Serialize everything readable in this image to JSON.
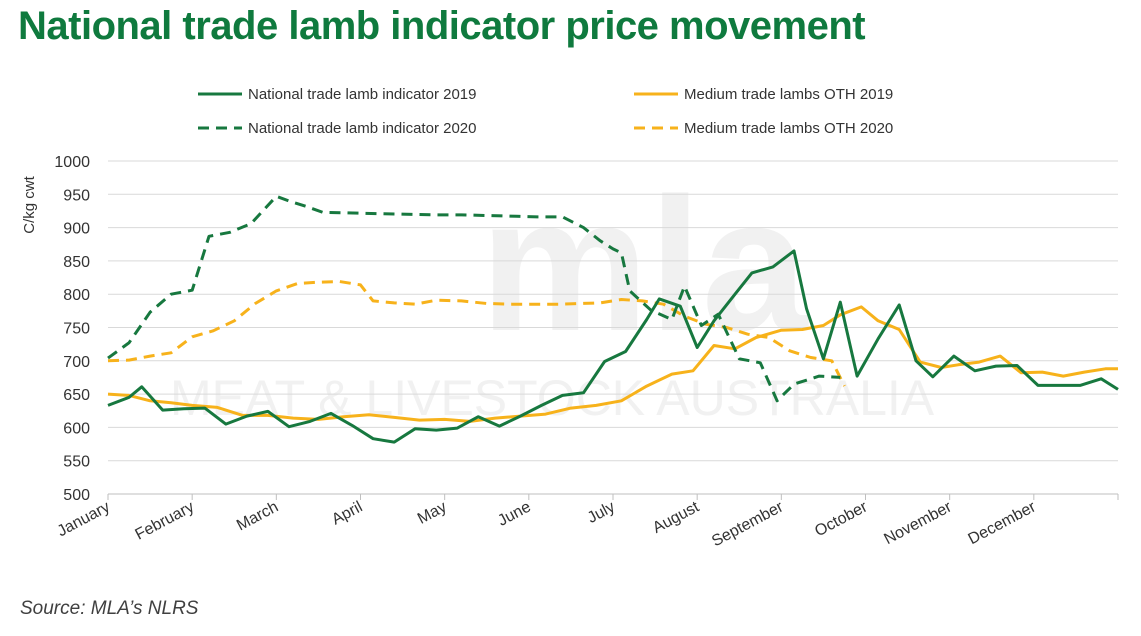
{
  "title": "National trade lamb indicator price movement",
  "source": "Source: MLA’s NLRS",
  "watermark": {
    "logo": "mla",
    "text": "MEAT & LIVESTOCK AUSTRALIA"
  },
  "colors": {
    "title": "#0f7a3e",
    "green": "#17783f",
    "orange": "#f7b21b"
  },
  "chart_data": {
    "type": "line",
    "title": "National trade lamb indicator price movement",
    "xlabel": "",
    "ylabel": "C/kg cwt",
    "ylim": [
      500,
      1000
    ],
    "yticks": [
      500,
      550,
      600,
      650,
      700,
      750,
      800,
      850,
      900,
      950,
      1000
    ],
    "xlim": [
      0,
      12
    ],
    "x_tick_labels": [
      "January",
      "February",
      "March",
      "April",
      "May",
      "June",
      "July",
      "August",
      "September",
      "October",
      "November",
      "December"
    ],
    "grid": "horizontal",
    "legend_position": "top",
    "series": [
      {
        "name": "National trade lamb indicator 2019",
        "color": "#17783f",
        "style": "solid",
        "x": [
          0,
          0.25,
          0.4,
          0.65,
          0.9,
          1.15,
          1.4,
          1.65,
          1.9,
          2.15,
          2.4,
          2.65,
          2.9,
          3.15,
          3.4,
          3.65,
          3.9,
          4.15,
          4.4,
          4.65,
          4.9,
          5.15,
          5.4,
          5.65,
          5.9,
          6.15,
          6.4,
          6.55,
          6.8,
          7.0,
          7.2,
          7.45,
          7.65,
          7.9,
          8.15,
          8.3,
          8.5,
          8.7,
          8.9,
          9.15,
          9.4,
          9.6,
          9.8,
          10.05,
          10.3,
          10.55,
          10.8,
          11.05,
          11.3,
          11.55,
          11.8,
          12.0
        ],
        "y": [
          633,
          645,
          661,
          626,
          628,
          629,
          605,
          617,
          624,
          601,
          609,
          621,
          603,
          583,
          578,
          598,
          596,
          599,
          616,
          602,
          617,
          633,
          648,
          652,
          699,
          714,
          762,
          793,
          782,
          720,
          760,
          800,
          832,
          841,
          865,
          778,
          703,
          788,
          677,
          733,
          784,
          700,
          676,
          707,
          685,
          692,
          693,
          663,
          663,
          663,
          673,
          657
        ]
      },
      {
        "name": "Medium trade lambs OTH 2019",
        "color": "#f7b21b",
        "style": "solid",
        "x": [
          0,
          0.25,
          0.5,
          0.75,
          1.0,
          1.3,
          1.6,
          1.9,
          2.2,
          2.5,
          2.8,
          3.1,
          3.4,
          3.7,
          4.0,
          4.3,
          4.6,
          4.9,
          5.2,
          5.5,
          5.8,
          6.1,
          6.4,
          6.7,
          6.95,
          7.2,
          7.45,
          7.7,
          8.0,
          8.25,
          8.5,
          8.7,
          8.95,
          9.15,
          9.4,
          9.65,
          9.9,
          10.1,
          10.35,
          10.6,
          10.85,
          11.1,
          11.35,
          11.6,
          11.85,
          12.0
        ],
        "y": [
          650,
          648,
          640,
          637,
          633,
          630,
          618,
          618,
          614,
          612,
          616,
          619,
          615,
          611,
          612,
          609,
          614,
          617,
          620,
          629,
          633,
          640,
          662,
          680,
          685,
          723,
          718,
          735,
          746,
          747,
          753,
          769,
          781,
          760,
          747,
          698,
          690,
          694,
          698,
          707,
          682,
          683,
          677,
          683,
          688,
          688
        ]
      },
      {
        "name": "National trade lamb indicator 2020",
        "color": "#17783f",
        "style": "dashed",
        "x": [
          0,
          0.25,
          0.5,
          0.75,
          1.0,
          1.2,
          1.45,
          1.7,
          2.0,
          2.15,
          2.35,
          2.55,
          2.85,
          3.2,
          3.55,
          3.9,
          4.2,
          4.55,
          4.85,
          5.1,
          5.4,
          5.65,
          5.85,
          6.0,
          6.1,
          6.2,
          6.45,
          6.7,
          6.85,
          7.05,
          7.25,
          7.5,
          7.75,
          7.95,
          8.15,
          8.45,
          8.7
        ],
        "y": [
          704,
          727,
          773,
          800,
          806,
          887,
          893,
          906,
          947,
          940,
          932,
          923,
          922,
          921,
          920,
          919,
          919,
          918,
          917,
          916,
          916,
          900,
          880,
          868,
          862,
          805,
          776,
          762,
          812,
          753,
          770,
          703,
          697,
          640,
          665,
          677,
          675
        ]
      },
      {
        "name": "Medium trade lambs OTH 2020",
        "color": "#f7b21b",
        "style": "dashed",
        "x": [
          0,
          0.25,
          0.5,
          0.75,
          1.0,
          1.25,
          1.5,
          1.75,
          2.0,
          2.25,
          2.5,
          2.75,
          3.0,
          3.15,
          3.4,
          3.65,
          3.9,
          4.2,
          4.5,
          4.8,
          5.05,
          5.35,
          5.6,
          5.85,
          6.1,
          6.35,
          6.6,
          6.85,
          7.1,
          7.35,
          7.6,
          7.85,
          8.1,
          8.35,
          8.6,
          8.75
        ],
        "y": [
          700,
          701,
          707,
          712,
          736,
          745,
          760,
          786,
          805,
          816,
          818,
          819,
          814,
          790,
          787,
          785,
          791,
          790,
          786,
          785,
          785,
          785,
          786,
          787,
          792,
          790,
          785,
          767,
          755,
          750,
          740,
          735,
          715,
          705,
          700,
          662
        ]
      }
    ]
  }
}
